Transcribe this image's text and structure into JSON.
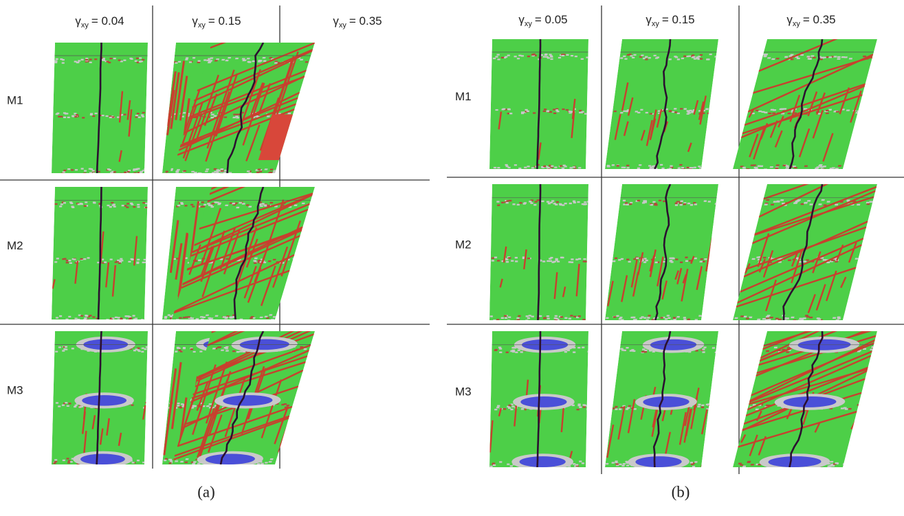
{
  "panels": [
    {
      "columns": [
        {
          "symbol": "γ",
          "sub": "xy",
          "rest": "= 0.04"
        },
        {
          "symbol": "γ",
          "sub": "xy",
          "rest": "= 0.15"
        },
        {
          "symbol": "γ",
          "sub": "xy",
          "rest": "= 0.35"
        }
      ],
      "rows": [
        "M1",
        "M2",
        "M3"
      ],
      "caption": "(a)"
    },
    {
      "columns": [
        {
          "symbol": "γ",
          "sub": "xy",
          "rest": "= 0.05"
        },
        {
          "symbol": "γ",
          "sub": "xy",
          "rest": "= 0.15"
        },
        {
          "symbol": "γ",
          "sub": "xy",
          "rest": "= 0.35"
        }
      ],
      "rows": [
        "M1",
        "M2",
        "M3"
      ],
      "caption": "(b)"
    }
  ]
}
